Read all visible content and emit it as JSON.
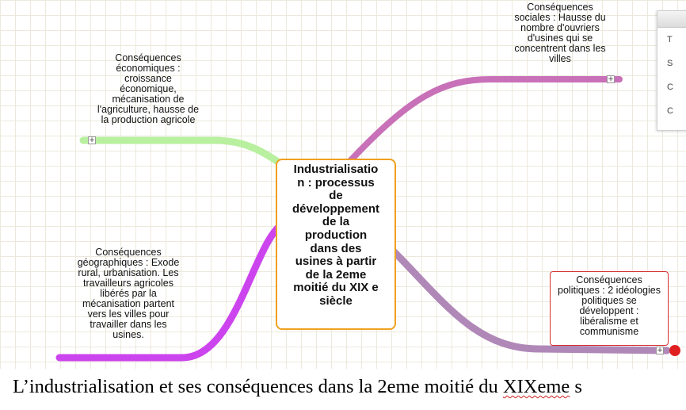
{
  "mindmap": {
    "central": "Industrialisatio\nn : processus\nde\ndéveloppement\nde la\nproduction\ndans des\nusines à partir\nde la 2eme\nmoitié du XIX e\nsiècle",
    "economic": "Conséquences\néconomiques :\ncroissance\néconomique,\nmécanisation de\nl'agriculture, hausse de\nla production agricole",
    "social": "Conséquences\nsociales : Hausse du\nnombre d'ouvriers\nd'usines qui se\nconcentrent dans les\nvilles",
    "geographic": "Conséquences\n     géographiques : Exode\nrural, urbanisation. Les\ntravailleurs agricoles\nlibérés par la\nmécanisation partent\nvers les villes pour\ntravailler dans les\nusines.",
    "political": "Conséquences\npolitiques : 2 idéologies\npolitiques se\ndéveloppent :\nlibéralisme et\ncommunisme",
    "expander_symbol": "+"
  },
  "colors": {
    "economic_branch": "#b8f0a0",
    "social_branch": "#c870b8",
    "geographic_branch": "#cc44ee",
    "political_branch": "#b088b8",
    "central_border": "#f0a020",
    "political_border": "#d43030"
  },
  "side_panel": {
    "title": "",
    "rows": [
      "T",
      "S",
      "C",
      "C"
    ]
  },
  "caption": {
    "prefix": "L’industrialisation et ses conséquences dans la 2eme moitié du ",
    "underlined": "XIXeme",
    "suffix": " s"
  }
}
